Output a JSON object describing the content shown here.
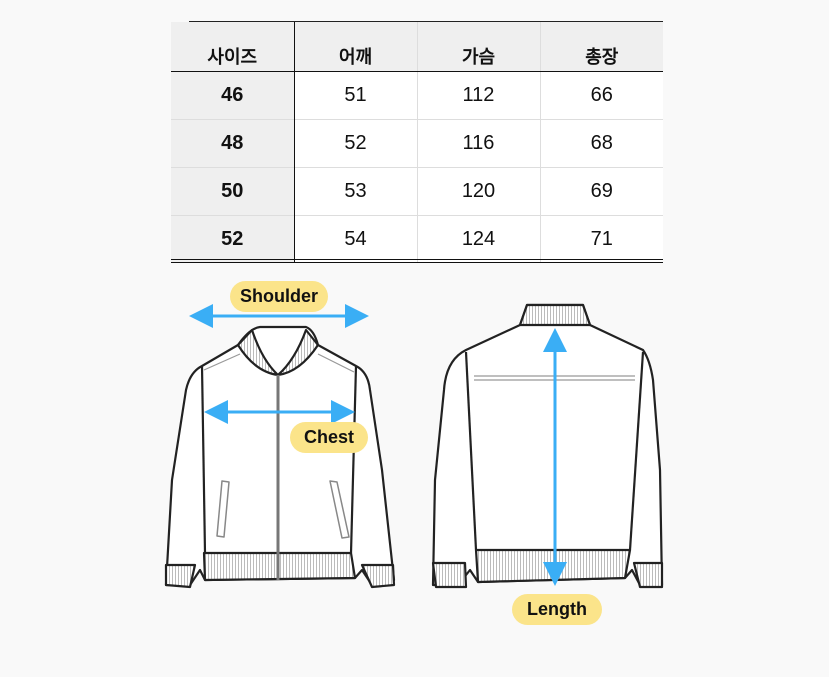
{
  "size_table": {
    "headers": [
      "사이즈",
      "어깨",
      "가슴",
      "총장"
    ],
    "rows": [
      [
        "46",
        "51",
        "112",
        "66"
      ],
      [
        "48",
        "52",
        "116",
        "68"
      ],
      [
        "50",
        "53",
        "120",
        "69"
      ],
      [
        "52",
        "54",
        "124",
        "71"
      ]
    ]
  },
  "diagram": {
    "labels": {
      "shoulder": "Shoulder",
      "chest": "Chest",
      "length": "Length"
    },
    "colors": {
      "arrow": "#3aaef5",
      "label_bg": "#fbe48a",
      "outline": "#222222"
    }
  }
}
